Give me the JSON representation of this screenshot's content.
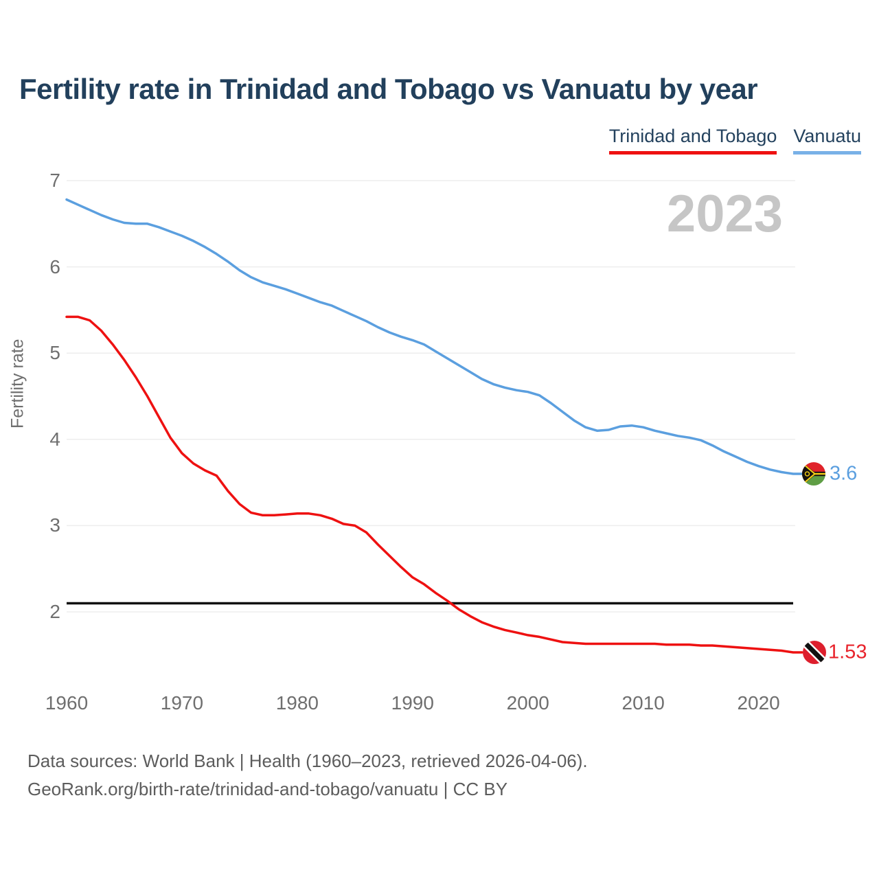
{
  "header": {
    "title": "Fertility rate in Trinidad and Tobago vs Vanuatu by year"
  },
  "chart": {
    "year_badge": "2023",
    "y_axis_label": "Fertility rate",
    "end_labels": {
      "trinidad_and_tobago": "1.53",
      "vanuatu": "3.6"
    }
  },
  "footer": {
    "line1": "Data sources: World Bank | Health (1960–2023, retrieved 2026-04-06).",
    "line2": "GeoRank.org/birth-rate/trinidad-and-tobago/vanuatu | CC BY"
  },
  "colors": {
    "title": "#22405c",
    "tick_text": "#6f6f6f",
    "gridline": "#ededed",
    "year_badge": "#c6c6c6",
    "reference_line": "#111111"
  },
  "flags": {
    "vanuatu": {
      "red": "#e0232a",
      "green": "#5f9e45",
      "black": "#171310",
      "yellow": "#f7d116"
    },
    "trinidad_and_tobago": {
      "red": "#dd1f2d",
      "white": "#ffffff",
      "black": "#111111"
    }
  },
  "chart_data": {
    "type": "line",
    "title": "Fertility rate in Trinidad and Tobago vs Vanuatu by year",
    "xlabel": "",
    "ylabel": "Fertility rate",
    "x_start": 1960,
    "x_end": 2023,
    "x_ticks": [
      1960,
      1970,
      1980,
      1990,
      2000,
      2010,
      2020
    ],
    "y_ticks": [
      2,
      3,
      4,
      5,
      6,
      7
    ],
    "ylim": [
      1.35,
      7.3
    ],
    "grid": "horizontal",
    "legend_position": "top-right",
    "reference_line": {
      "value": 2.1,
      "color": "#111111"
    },
    "current_year_label": "2023",
    "series": [
      {
        "name": "Trinidad and Tobago",
        "color": "#ee1111",
        "end_value": 1.53,
        "values": [
          5.42,
          5.42,
          5.38,
          5.26,
          5.1,
          4.92,
          4.72,
          4.5,
          4.26,
          4.02,
          3.84,
          3.72,
          3.64,
          3.58,
          3.4,
          3.25,
          3.15,
          3.12,
          3.12,
          3.13,
          3.14,
          3.14,
          3.12,
          3.08,
          3.02,
          3.0,
          2.92,
          2.78,
          2.65,
          2.52,
          2.4,
          2.32,
          2.22,
          2.13,
          2.03,
          1.95,
          1.88,
          1.83,
          1.79,
          1.76,
          1.73,
          1.71,
          1.68,
          1.65,
          1.64,
          1.63,
          1.63,
          1.63,
          1.63,
          1.63,
          1.63,
          1.63,
          1.62,
          1.62,
          1.62,
          1.61,
          1.61,
          1.6,
          1.59,
          1.58,
          1.57,
          1.56,
          1.55,
          1.53
        ]
      },
      {
        "name": "Vanuatu",
        "color": "#5b9fdf",
        "end_value": 3.6,
        "values": [
          6.78,
          6.72,
          6.66,
          6.6,
          6.55,
          6.51,
          6.5,
          6.5,
          6.46,
          6.41,
          6.36,
          6.3,
          6.23,
          6.15,
          6.06,
          5.96,
          5.88,
          5.82,
          5.78,
          5.74,
          5.69,
          5.64,
          5.59,
          5.55,
          5.49,
          5.43,
          5.37,
          5.3,
          5.24,
          5.19,
          5.15,
          5.1,
          5.02,
          4.94,
          4.86,
          4.78,
          4.7,
          4.64,
          4.6,
          4.57,
          4.55,
          4.51,
          4.42,
          4.32,
          4.22,
          4.14,
          4.1,
          4.11,
          4.15,
          4.16,
          4.14,
          4.1,
          4.07,
          4.04,
          4.02,
          3.99,
          3.93,
          3.86,
          3.8,
          3.74,
          3.69,
          3.65,
          3.62,
          3.6
        ]
      }
    ]
  }
}
